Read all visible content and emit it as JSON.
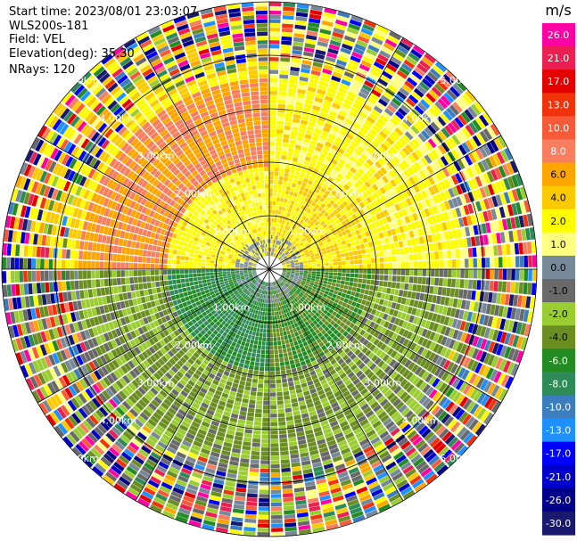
{
  "header": {
    "start_time": "Start time: 2023/08/01 23:03:07",
    "instrument": "WLS200s-181",
    "field": "Field: VEL",
    "elevation": "Elevation(deg): 35.30",
    "nrays": "NRays: 120"
  },
  "chart_data": {
    "type": "heatmap",
    "subtype": "polar-ppi",
    "field": "VEL",
    "units": "m/s",
    "n_rays": 120,
    "max_range_km": 5.0,
    "range_rings_km": [
      1.0,
      2.0,
      3.0,
      4.0,
      5.0
    ],
    "ring_labels": [
      "1.00km",
      "2.00km",
      "3.00km",
      "4.00km",
      "5.00km"
    ],
    "spoke_angles_deg": [
      0,
      30,
      60,
      90,
      120,
      150,
      180,
      210,
      240,
      270,
      300,
      330
    ],
    "colorbar": {
      "title": "m/s",
      "tick_labels": [
        "26.0",
        "21.0",
        "17.0",
        "13.0",
        "10.0",
        "8.0",
        "6.0",
        "4.0",
        "2.0",
        "1.0",
        "0.0",
        "-1.0",
        "-2.0",
        "-4.0",
        "-6.0",
        "-8.0",
        "-10.0",
        "-13.0",
        "-17.0",
        "-21.0",
        "-26.0",
        "-30.0"
      ],
      "colors": [
        "#fe00a4",
        "#ec1f52",
        "#e50000",
        "#f0330b",
        "#f65a39",
        "#f77f5f",
        "#ffa500",
        "#fcca00",
        "#fdfd00",
        "#ffff80",
        "#778899",
        "#696969",
        "#9acd32",
        "#6b8e23",
        "#228b22",
        "#2e8b57",
        "#3a7ebf",
        "#1e90ff",
        "#0000ff",
        "#0000cd",
        "#00008b",
        "#191970"
      ]
    },
    "sectors": [
      {
        "from_deg": 0,
        "to_deg": 90,
        "description": "north-east",
        "near": 4.0,
        "mid": 3.0,
        "far": 2.0
      },
      {
        "from_deg": 90,
        "to_deg": 180,
        "description": "south-east",
        "near": -4.0,
        "mid": -2.0,
        "far": -1.0
      },
      {
        "from_deg": 180,
        "to_deg": 270,
        "description": "south-west",
        "near": -6.0,
        "mid": -2.0,
        "far": -1.0
      },
      {
        "from_deg": 270,
        "to_deg": 360,
        "description": "north-west",
        "near": 3.0,
        "mid": 8.0,
        "far": 4.0
      }
    ]
  }
}
